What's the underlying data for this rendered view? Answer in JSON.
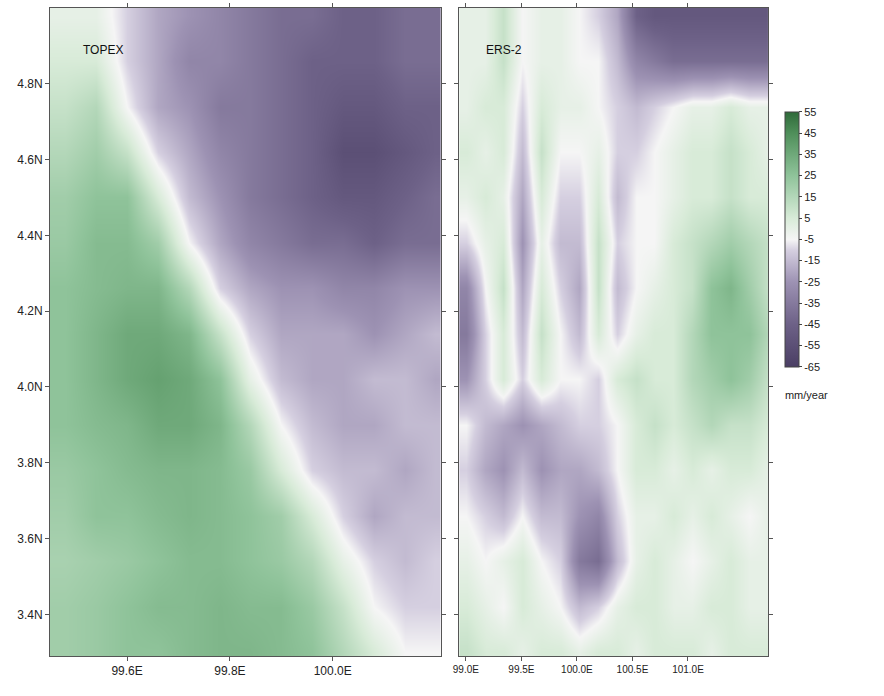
{
  "chart_data": [
    {
      "type": "heatmap",
      "title": "TOPEX",
      "x": [
        99.48,
        99.54,
        99.6,
        99.66,
        99.72,
        99.78,
        99.84,
        99.9,
        99.96,
        100.02,
        100.08,
        100.14,
        100.2
      ],
      "y": [
        3.3,
        3.42,
        3.54,
        3.66,
        3.78,
        3.9,
        4.02,
        4.14,
        4.26,
        4.38,
        4.5,
        4.62,
        4.74,
        4.86,
        4.98
      ],
      "cells": [
        [
          20,
          22,
          25,
          25,
          28,
          30,
          30,
          28,
          25,
          15,
          5,
          -5,
          -5
        ],
        [
          20,
          22,
          25,
          28,
          28,
          30,
          28,
          28,
          22,
          10,
          -5,
          -10,
          -10
        ],
        [
          18,
          20,
          22,
          25,
          28,
          28,
          25,
          22,
          15,
          0,
          -10,
          -15,
          -10
        ],
        [
          20,
          25,
          25,
          28,
          30,
          28,
          25,
          20,
          5,
          -10,
          -20,
          -15,
          -15
        ],
        [
          22,
          25,
          28,
          30,
          30,
          28,
          22,
          5,
          -10,
          -15,
          -15,
          -20,
          -15
        ],
        [
          25,
          28,
          30,
          35,
          35,
          30,
          15,
          -5,
          -15,
          -20,
          -20,
          -15,
          -15
        ],
        [
          25,
          30,
          35,
          38,
          35,
          25,
          0,
          -15,
          -20,
          -20,
          -15,
          -15,
          -20
        ],
        [
          25,
          30,
          35,
          35,
          30,
          10,
          -10,
          -20,
          -20,
          -20,
          -25,
          -20,
          -15
        ],
        [
          25,
          28,
          30,
          30,
          15,
          -10,
          -20,
          -25,
          -25,
          -30,
          -30,
          -25,
          -25
        ],
        [
          22,
          28,
          28,
          20,
          -5,
          -20,
          -30,
          -35,
          -40,
          -40,
          -45,
          -40,
          -40
        ],
        [
          20,
          25,
          25,
          5,
          -15,
          -25,
          -35,
          -40,
          -45,
          -50,
          -50,
          -45,
          -40
        ],
        [
          15,
          20,
          10,
          -10,
          -20,
          -30,
          -35,
          -40,
          -45,
          -55,
          -55,
          -50,
          -45
        ],
        [
          10,
          15,
          -5,
          -20,
          -25,
          -35,
          -35,
          -40,
          -45,
          -50,
          -50,
          -45,
          -45
        ],
        [
          5,
          5,
          -10,
          -20,
          -30,
          -30,
          -35,
          -40,
          -45,
          -45,
          -45,
          -40,
          -40
        ],
        [
          0,
          0,
          -10,
          -20,
          -25,
          -30,
          -35,
          -40,
          -40,
          -45,
          -45,
          -40,
          -40
        ]
      ],
      "xlim": [
        99.45,
        100.21
      ],
      "ylim": [
        3.29,
        5.0
      ],
      "xticks": [
        {
          "value": 99.6,
          "label": "99.6E"
        },
        {
          "value": 99.8,
          "label": "99.8E"
        },
        {
          "value": 100.0,
          "label": "100.0E"
        }
      ],
      "yticks": [
        {
          "value": 3.4,
          "label": "3.4N"
        },
        {
          "value": 3.6,
          "label": "3.6N"
        },
        {
          "value": 3.8,
          "label": "3.8N"
        },
        {
          "value": 4.0,
          "label": "4.0N"
        },
        {
          "value": 4.2,
          "label": "4.2N"
        },
        {
          "value": 4.4,
          "label": "4.4N"
        },
        {
          "value": 4.6,
          "label": "4.6N"
        },
        {
          "value": 4.8,
          "label": "4.8N"
        }
      ],
      "grid": false
    },
    {
      "type": "heatmap",
      "title": "ERS-2",
      "x": [
        99.0,
        99.17,
        99.34,
        99.51,
        99.68,
        99.85,
        100.02,
        100.19,
        100.36,
        100.53,
        100.7,
        100.87,
        101.04,
        101.21,
        101.38,
        101.55,
        101.72
      ],
      "y": [
        3.3,
        3.42,
        3.54,
        3.66,
        3.78,
        3.9,
        4.02,
        4.14,
        4.26,
        4.38,
        4.5,
        4.62,
        4.74,
        4.86,
        4.98
      ],
      "cells": [
        [
          10,
          5,
          5,
          0,
          5,
          5,
          0,
          5,
          5,
          0,
          5,
          5,
          5,
          0,
          5,
          5,
          5
        ],
        [
          5,
          0,
          -5,
          5,
          0,
          -5,
          -15,
          -10,
          0,
          5,
          5,
          0,
          0,
          5,
          5,
          0,
          0
        ],
        [
          0,
          -5,
          0,
          5,
          -5,
          -10,
          -35,
          -40,
          -15,
          0,
          5,
          0,
          -5,
          0,
          5,
          0,
          0
        ],
        [
          -5,
          -10,
          -15,
          -5,
          -15,
          -15,
          -25,
          -30,
          -10,
          0,
          0,
          5,
          0,
          5,
          0,
          -5,
          0
        ],
        [
          -10,
          -20,
          -25,
          -15,
          -25,
          -20,
          -20,
          -15,
          -5,
          5,
          5,
          0,
          5,
          0,
          5,
          5,
          0
        ],
        [
          -5,
          -15,
          -20,
          -25,
          -20,
          -15,
          -10,
          -10,
          -5,
          5,
          10,
          5,
          10,
          15,
          10,
          10,
          5
        ],
        [
          -25,
          -10,
          5,
          -10,
          5,
          -5,
          -5,
          -10,
          5,
          10,
          5,
          5,
          15,
          20,
          25,
          20,
          10
        ],
        [
          -35,
          -10,
          5,
          -15,
          10,
          -5,
          -15,
          5,
          -10,
          0,
          5,
          5,
          15,
          25,
          25,
          25,
          15
        ],
        [
          -30,
          -5,
          10,
          -20,
          5,
          -10,
          -20,
          10,
          -15,
          -5,
          0,
          5,
          10,
          25,
          30,
          20,
          10
        ],
        [
          -10,
          0,
          5,
          -25,
          0,
          -15,
          -15,
          10,
          -10,
          -5,
          -5,
          5,
          10,
          15,
          20,
          15,
          10
        ],
        [
          0,
          5,
          0,
          -20,
          5,
          -10,
          -10,
          5,
          -15,
          -5,
          -5,
          0,
          5,
          5,
          10,
          5,
          5
        ],
        [
          5,
          0,
          5,
          -15,
          10,
          -5,
          -5,
          0,
          -10,
          -10,
          -5,
          0,
          5,
          5,
          10,
          5,
          0
        ],
        [
          0,
          5,
          5,
          -10,
          5,
          0,
          0,
          -5,
          -10,
          -15,
          -10,
          -5,
          0,
          0,
          5,
          0,
          0
        ],
        [
          0,
          0,
          10,
          -5,
          0,
          0,
          -5,
          -5,
          -15,
          -30,
          -35,
          -40,
          -40,
          -40,
          -40,
          -40,
          -40
        ],
        [
          0,
          0,
          10,
          -5,
          0,
          0,
          -5,
          -10,
          -20,
          -45,
          -50,
          -50,
          -50,
          -50,
          -50,
          -50,
          -50
        ]
      ],
      "xlim": [
        98.94,
        101.72
      ],
      "ylim": [
        3.29,
        5.0
      ],
      "xticks": [
        {
          "value": 99.0,
          "label": "99.0E"
        },
        {
          "value": 99.5,
          "label": "99.5E"
        },
        {
          "value": 100.0,
          "label": "100.0E"
        },
        {
          "value": 100.5,
          "label": "100.5E"
        },
        {
          "value": 101.0,
          "label": "101.0E"
        }
      ],
      "yticks": [
        {
          "value": 3.4,
          "label": "3.4N"
        },
        {
          "value": 3.6,
          "label": "3.6N"
        },
        {
          "value": 3.8,
          "label": "3.8N"
        },
        {
          "value": 4.0,
          "label": "4.0N"
        },
        {
          "value": 4.2,
          "label": "4.2N"
        },
        {
          "value": 4.4,
          "label": "4.4N"
        },
        {
          "value": 4.6,
          "label": "4.6N"
        },
        {
          "value": 4.8,
          "label": "4.8N"
        }
      ],
      "tick_labels": "x",
      "grid": false,
      "colorbar": {
        "range": [
          -65,
          55
        ],
        "ticks": [
          55,
          45,
          35,
          25,
          15,
          5,
          -5,
          -15,
          -25,
          -35,
          -45,
          -55,
          -65
        ],
        "label": "mm/year"
      }
    }
  ]
}
